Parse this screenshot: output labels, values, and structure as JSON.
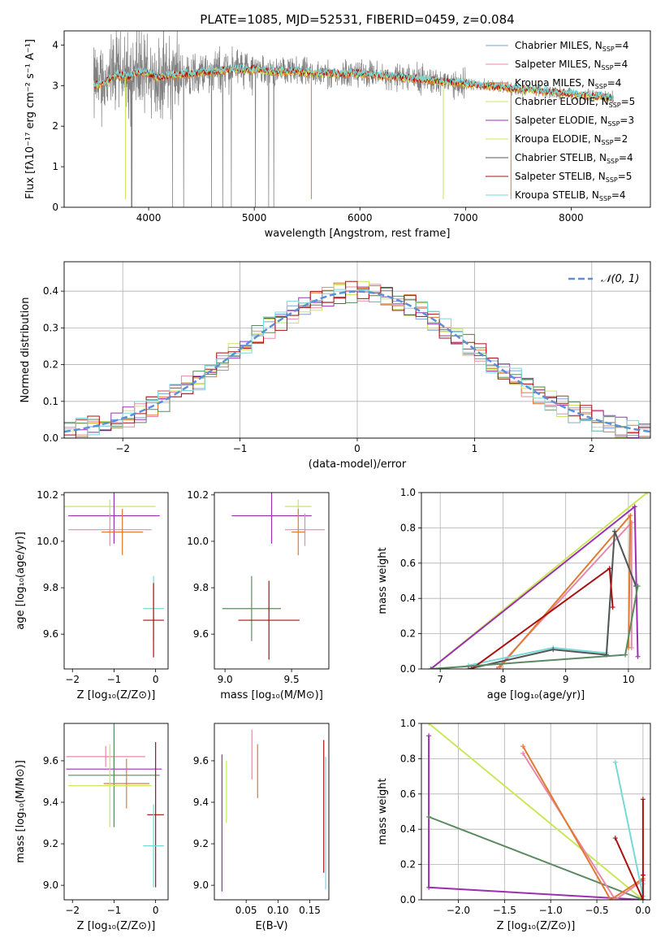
{
  "figure_title": "PLATE=1085, MJD=52531, FIBERID=0459, z=0.084",
  "colors": {
    "chabrier_miles": "#7da0d8",
    "salpeter_miles": "#e888a8",
    "kroupa_miles": "#e07a30",
    "chabrier_elodie": "#c8e85a",
    "salpeter_elodie": "#9a30b0",
    "kroupa_elodie": "#c8e85a",
    "chabrier_stelib": "#555555",
    "salpeter_stelib": "#aa1010",
    "kroupa_stelib": "#77d8d8",
    "stelib_green": "#5a8a60",
    "data": "#808080",
    "normal": "#5b8fd9"
  },
  "chart_data": [
    {
      "id": "spectrum",
      "type": "line",
      "title": "PLATE=1085, MJD=52531, FIBERID=0459, z=0.084",
      "xlabel": "wavelength [Angstrom, rest frame]",
      "ylabel": "Flux [fλ10⁻¹⁷ erg cm⁻² s⁻¹ A⁻¹]",
      "xlim": [
        3200,
        8750
      ],
      "ylim": [
        0,
        4.35
      ],
      "xticks": [
        "4000",
        "5000",
        "6000",
        "7000",
        "8000"
      ],
      "yticks": [
        "0",
        "1",
        "2",
        "3",
        "4"
      ],
      "continuum": {
        "x": [
          3480,
          3600,
          3700,
          3800,
          3900,
          4000,
          4100,
          4200,
          4400,
          4600,
          4800,
          5000,
          5200,
          5400,
          5600,
          5800,
          6000,
          6200,
          6400,
          6600,
          6800,
          7000,
          7200,
          7400,
          7600,
          7800,
          8000,
          8200,
          8400
        ],
        "y": [
          3.0,
          3.1,
          3.3,
          3.2,
          3.35,
          3.3,
          3.2,
          3.25,
          3.3,
          3.35,
          3.4,
          3.4,
          3.35,
          3.35,
          3.3,
          3.3,
          3.3,
          3.25,
          3.2,
          3.15,
          3.1,
          3.05,
          3.0,
          2.95,
          2.9,
          2.85,
          2.8,
          2.75,
          2.7
        ]
      },
      "legend": [
        {
          "label": "Chabrier MILES, N",
          "sub": "SSP",
          "suffix": "=4",
          "color_key": "chabrier_miles"
        },
        {
          "label": "Salpeter MILES, N",
          "sub": "SSP",
          "suffix": "=4",
          "color_key": "salpeter_miles"
        },
        {
          "label": "Kroupa MILES, N",
          "sub": "SSP",
          "suffix": "=4",
          "color_key": "kroupa_miles"
        },
        {
          "label": "Chabrier ELODIE, N",
          "sub": "SSP",
          "suffix": "=5",
          "color_key": "chabrier_elodie"
        },
        {
          "label": "Salpeter ELODIE, N",
          "sub": "SSP",
          "suffix": "=3",
          "color_key": "salpeter_elodie"
        },
        {
          "label": "Kroupa ELODIE, N",
          "sub": "SSP",
          "suffix": "=2",
          "color_key": "kroupa_elodie"
        },
        {
          "label": "Chabrier STELIB, N",
          "sub": "SSP",
          "suffix": "=4",
          "color_key": "chabrier_stelib"
        },
        {
          "label": "Salpeter STELIB, N",
          "sub": "SSP",
          "suffix": "=5",
          "color_key": "salpeter_stelib"
        },
        {
          "label": "Kroupa STELIB, N",
          "sub": "SSP",
          "suffix": "=4",
          "color_key": "kroupa_stelib"
        }
      ]
    },
    {
      "id": "residuals",
      "type": "line",
      "xlabel": "(data-model)/error",
      "ylabel": "Normed distribution",
      "xlim": [
        -2.5,
        2.5
      ],
      "ylim": [
        0,
        0.48
      ],
      "xticks": [
        "−2",
        "−1",
        "0",
        "1",
        "2"
      ],
      "yticks": [
        "0.0",
        "0.1",
        "0.2",
        "0.3",
        "0.4"
      ],
      "legend": "𝒩(0, 1)",
      "grid": true
    },
    {
      "id": "age_vs_Z",
      "type": "scatter",
      "xlabel": "Z [log₁₀(Z/Z⊙)]",
      "ylabel": "age  [log₁₀(age/yr)]",
      "xlim": [
        -2.2,
        0.3
      ],
      "ylim": [
        9.45,
        10.21
      ],
      "xticks": [
        "−2",
        "−1",
        "0"
      ],
      "yticks": [
        "9.6",
        "9.8",
        "10.0",
        "10.2"
      ],
      "points": [
        {
          "x": -1.1,
          "y": 10.15,
          "xerr": 1.1,
          "yerr": 0.03,
          "color_key": "chabrier_elodie"
        },
        {
          "x": -1.0,
          "y": 10.11,
          "xerr": 1.1,
          "yerr": 0.12,
          "color_key": "salpeter_elodie"
        },
        {
          "x": -1.1,
          "y": 10.05,
          "xerr": 1.0,
          "yerr": 0.07,
          "color_key": "salpeter_miles"
        },
        {
          "x": -0.8,
          "y": 10.04,
          "xerr": 0.5,
          "yerr": 0.1,
          "color_key": "kroupa_miles"
        },
        {
          "x": -0.05,
          "y": 9.71,
          "xerr": 0.25,
          "yerr": 0.14,
          "color_key": "kroupa_stelib"
        },
        {
          "x": -0.05,
          "y": 9.66,
          "xerr": 0.25,
          "yerr": 0.16,
          "color_key": "salpeter_stelib"
        }
      ]
    },
    {
      "id": "age_vs_mass",
      "type": "scatter",
      "xlabel": "mass [log₁₀(M/M⊙)]",
      "ylabel": "",
      "xlim": [
        8.92,
        9.78
      ],
      "ylim": [
        9.45,
        10.21
      ],
      "xticks": [
        "9.0",
        "9.5"
      ],
      "yticks": [
        "9.6",
        "9.8",
        "10.0",
        "10.2"
      ],
      "points": [
        {
          "x": 9.55,
          "y": 10.15,
          "xerr": 0.1,
          "yerr": 0.03,
          "color_key": "chabrier_elodie"
        },
        {
          "x": 9.35,
          "y": 10.11,
          "xerr": 0.3,
          "yerr": 0.12,
          "color_key": "salpeter_elodie"
        },
        {
          "x": 9.6,
          "y": 10.05,
          "xerr": 0.15,
          "yerr": 0.07,
          "color_key": "salpeter_miles"
        },
        {
          "x": 9.55,
          "y": 10.04,
          "xerr": 0.05,
          "yerr": 0.1,
          "color_key": "kroupa_miles"
        },
        {
          "x": 9.2,
          "y": 9.71,
          "xerr": 0.22,
          "yerr": 0.14,
          "color_key": "stelib_green"
        },
        {
          "x": 9.33,
          "y": 9.66,
          "xerr": 0.23,
          "yerr": 0.17,
          "color_key": "salpeter_stelib"
        }
      ]
    },
    {
      "id": "mass_weight_vs_age",
      "type": "line",
      "xlabel": "age  [log₁₀(age/yr)]",
      "ylabel": "mass weight",
      "xlim": [
        6.7,
        10.35
      ],
      "ylim": [
        0,
        1
      ],
      "xticks": [
        "7",
        "8",
        "9",
        "10"
      ],
      "yticks": [
        "0.0",
        "0.2",
        "0.4",
        "0.6",
        "0.8",
        "1.0"
      ],
      "grid": true,
      "series": [
        {
          "color_key": "chabrier_elodie",
          "x": [
            6.85,
            10.3
          ],
          "y": [
            0.0,
            1.0
          ]
        },
        {
          "color_key": "salpeter_elodie",
          "x": [
            6.85,
            10.1,
            10.15
          ],
          "y": [
            0.0,
            0.92,
            0.07
          ]
        },
        {
          "color_key": "salpeter_miles",
          "x": [
            7.9,
            10.05,
            10.05
          ],
          "y": [
            0.0,
            0.83,
            0.12
          ]
        },
        {
          "color_key": "kroupa_miles",
          "x": [
            7.95,
            10.03,
            10.0
          ],
          "y": [
            0.01,
            0.87,
            0.12
          ]
        },
        {
          "color_key": "kroupa_stelib",
          "x": [
            7.45,
            8.8,
            9.65,
            9.78,
            10.12
          ],
          "y": [
            0.02,
            0.12,
            0.09,
            0.78,
            0.47
          ]
        },
        {
          "color_key": "chabrier_stelib",
          "x": [
            7.45,
            8.8,
            9.65,
            9.78,
            10.12
          ],
          "y": [
            0.0,
            0.11,
            0.08,
            0.78,
            0.47
          ]
        },
        {
          "color_key": "salpeter_stelib",
          "x": [
            7.5,
            9.7,
            9.75
          ],
          "y": [
            0.0,
            0.57,
            0.35
          ]
        },
        {
          "color_key": "stelib_green",
          "x": [
            6.85,
            9.95,
            10.15
          ],
          "y": [
            0.0,
            0.08,
            0.47
          ]
        }
      ]
    },
    {
      "id": "mass_vs_Z",
      "type": "scatter",
      "xlabel": "Z [log₁₀(Z/Z⊙)]",
      "ylabel": "mass [log₁₀(M/M⊙)]",
      "xlim": [
        -2.2,
        0.3
      ],
      "ylim": [
        8.93,
        9.78
      ],
      "xticks": [
        "−2",
        "−1",
        "0"
      ],
      "yticks": [
        "9.0",
        "9.2",
        "9.4",
        "9.6"
      ],
      "points": [
        {
          "x": -1.2,
          "y": 9.62,
          "xerr": 0.95,
          "yerr": 0.05,
          "color_key": "salpeter_miles"
        },
        {
          "x": -1.0,
          "y": 9.56,
          "xerr": 1.15,
          "yerr": 0.06,
          "color_key": "salpeter_elodie"
        },
        {
          "x": -1.0,
          "y": 9.53,
          "xerr": 1.1,
          "yerr": 0.25,
          "color_key": "stelib_green"
        },
        {
          "x": -0.7,
          "y": 9.49,
          "xerr": 0.55,
          "yerr": 0.12,
          "color_key": "kroupa_miles"
        },
        {
          "x": -1.1,
          "y": 9.48,
          "xerr": 1.0,
          "yerr": 0.2,
          "color_key": "chabrier_elodie"
        },
        {
          "x": 0.0,
          "y": 9.34,
          "xerr": 0.2,
          "yerr": 0.35,
          "color_key": "salpeter_stelib"
        },
        {
          "x": -0.05,
          "y": 9.19,
          "xerr": 0.25,
          "yerr": 0.2,
          "color_key": "kroupa_stelib"
        }
      ]
    },
    {
      "id": "mass_vs_ebv",
      "type": "scatter",
      "xlabel": "E(B-V)",
      "ylabel": "",
      "xlim": [
        0.0,
        0.18
      ],
      "ylim": [
        8.93,
        9.78
      ],
      "xticks": [
        "0.05",
        "0.10",
        "0.15"
      ],
      "yticks": [
        "9.0",
        "9.2",
        "9.4",
        "9.6"
      ],
      "points": [
        {
          "x": 0.012,
          "y": 9.3,
          "yerr": 0.33,
          "color_key": "salpeter_elodie"
        },
        {
          "x": 0.019,
          "y": 9.45,
          "yerr": 0.15,
          "color_key": "chabrier_elodie"
        },
        {
          "x": 0.059,
          "y": 9.63,
          "yerr": 0.12,
          "color_key": "salpeter_miles"
        },
        {
          "x": 0.068,
          "y": 9.55,
          "yerr": 0.13,
          "color_key": "kroupa_miles"
        },
        {
          "x": 0.172,
          "y": 9.38,
          "yerr": 0.32,
          "color_key": "salpeter_stelib"
        },
        {
          "x": 0.175,
          "y": 9.3,
          "yerr": 0.32,
          "color_key": "kroupa_stelib"
        }
      ]
    },
    {
      "id": "mass_weight_vs_Z",
      "type": "line",
      "xlabel": "Z [log₁₀(Z/Z⊙)]",
      "ylabel": "mass weight",
      "xlim": [
        -2.4,
        0.08
      ],
      "ylim": [
        0,
        1
      ],
      "xticks": [
        "−2.0",
        "−1.5",
        "−1.0",
        "−0.5",
        "0.0"
      ],
      "yticks": [
        "0.0",
        "0.2",
        "0.4",
        "0.6",
        "0.8",
        "1.0"
      ],
      "grid": true,
      "series": [
        {
          "color_key": "chabrier_elodie",
          "x": [
            -2.32,
            0.0
          ],
          "y": [
            1.0,
            0.0
          ]
        },
        {
          "color_key": "salpeter_elodie",
          "x": [
            -2.32,
            -2.32,
            0.0
          ],
          "y": [
            0.93,
            0.07,
            0.0
          ]
        },
        {
          "color_key": "stelib_green",
          "x": [
            -2.32,
            0.0
          ],
          "y": [
            0.47,
            0.0
          ]
        },
        {
          "color_key": "salpeter_miles",
          "x": [
            -1.3,
            -0.3,
            0.0
          ],
          "y": [
            0.83,
            0.0,
            0.11
          ]
        },
        {
          "color_key": "kroupa_miles",
          "x": [
            -1.3,
            -0.35,
            0.0
          ],
          "y": [
            0.87,
            0.0,
            0.12
          ]
        },
        {
          "color_key": "kroupa_stelib",
          "x": [
            -0.3,
            0.0,
            0.0
          ],
          "y": [
            0.78,
            0.02,
            0.09
          ]
        },
        {
          "color_key": "salpeter_stelib",
          "x": [
            -0.3,
            0.0,
            0.0,
            0.0
          ],
          "y": [
            0.35,
            0.0,
            0.57,
            0.14
          ]
        }
      ]
    }
  ]
}
